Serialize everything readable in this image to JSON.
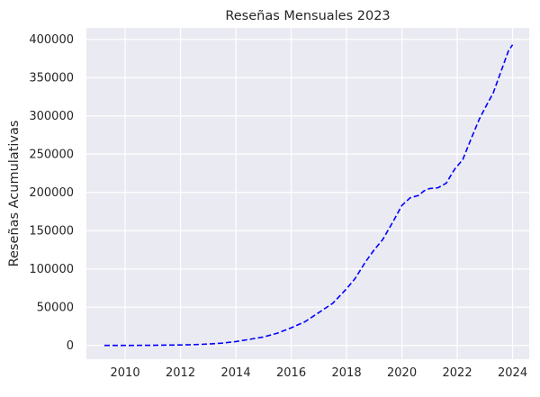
{
  "chart_data": {
    "type": "line",
    "title": "Reseñas Mensuales 2023",
    "xlabel": "",
    "ylabel": "Reseñas Acumulativas",
    "xlim": [
      2008.6,
      2024.6
    ],
    "ylim": [
      -18000,
      415000
    ],
    "xticks": [
      2010,
      2012,
      2014,
      2016,
      2018,
      2020,
      2022,
      2024
    ],
    "yticks": [
      0,
      50000,
      100000,
      150000,
      200000,
      250000,
      300000,
      350000,
      400000
    ],
    "grid": true,
    "background_color": "#eaeaf2",
    "line_color": "#0000ff",
    "line_style": "dashed",
    "series": [
      {
        "x": [
          2009.25,
          2010,
          2011,
          2012,
          2012.5,
          2013,
          2013.5,
          2014,
          2014.5,
          2015,
          2015.5,
          2016,
          2016.5,
          2017,
          2017.5,
          2018,
          2018.3,
          2018.7,
          2019,
          2019.3,
          2019.7,
          2020,
          2020.3,
          2020.6,
          2020.8,
          2021,
          2021.3,
          2021.6,
          2021.9,
          2022.2,
          2022.5,
          2022.8,
          2023.0,
          2023.3,
          2023.6,
          2023.85,
          2024.0
        ],
        "y": [
          0,
          0,
          200,
          600,
          1000,
          1800,
          3000,
          5000,
          8000,
          11000,
          16000,
          23000,
          31000,
          43000,
          55000,
          74000,
          87000,
          110000,
          125000,
          138000,
          163000,
          183000,
          193000,
          196000,
          202000,
          205000,
          206000,
          212000,
          230000,
          243000,
          270000,
          296000,
          310000,
          330000,
          360000,
          385000,
          393000
        ]
      }
    ]
  }
}
